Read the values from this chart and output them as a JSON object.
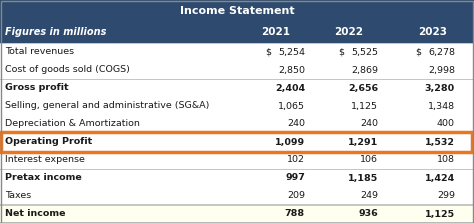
{
  "title": "Income Statement",
  "header_bg": "#2e4a6e",
  "header_text_color": "#ffffff",
  "subheader_label": "Figures in millions",
  "years": [
    "2021",
    "2022",
    "2023"
  ],
  "rows": [
    {
      "label": "Total revenues",
      "dollar": true,
      "bold": false,
      "values": [
        "5,254",
        "5,525",
        "6,278"
      ]
    },
    {
      "label": "Cost of goods sold (COGS)",
      "dollar": false,
      "bold": false,
      "values": [
        "2,850",
        "2,869",
        "2,998"
      ]
    },
    {
      "label": "Gross profit",
      "dollar": false,
      "bold": true,
      "values": [
        "2,404",
        "2,656",
        "3,280"
      ]
    },
    {
      "label": "Selling, general and administrative (SG&A)",
      "dollar": false,
      "bold": false,
      "values": [
        "1,065",
        "1,125",
        "1,348"
      ]
    },
    {
      "label": "Depreciation & Amortization",
      "dollar": false,
      "bold": false,
      "values": [
        "240",
        "240",
        "400"
      ]
    },
    {
      "label": "Operating Profit",
      "dollar": false,
      "bold": true,
      "values": [
        "1,099",
        "1,291",
        "1,532"
      ],
      "highlight": true
    },
    {
      "label": "Interest expense",
      "dollar": false,
      "bold": false,
      "values": [
        "102",
        "106",
        "108"
      ]
    },
    {
      "label": "Pretax income",
      "dollar": false,
      "bold": true,
      "values": [
        "997",
        "1,185",
        "1,424"
      ]
    },
    {
      "label": "Taxes",
      "dollar": false,
      "bold": false,
      "values": [
        "209",
        "249",
        "299"
      ]
    },
    {
      "label": "Net income",
      "dollar": false,
      "bold": true,
      "values": [
        "788",
        "936",
        "1,125"
      ],
      "net_income": true
    }
  ],
  "highlight_color": "#e87722",
  "net_income_bg": "#fffff0",
  "divider_before": [
    2,
    5,
    7,
    9
  ],
  "thick_divider_before": [
    9
  ],
  "fig_bg": "#ffffff"
}
